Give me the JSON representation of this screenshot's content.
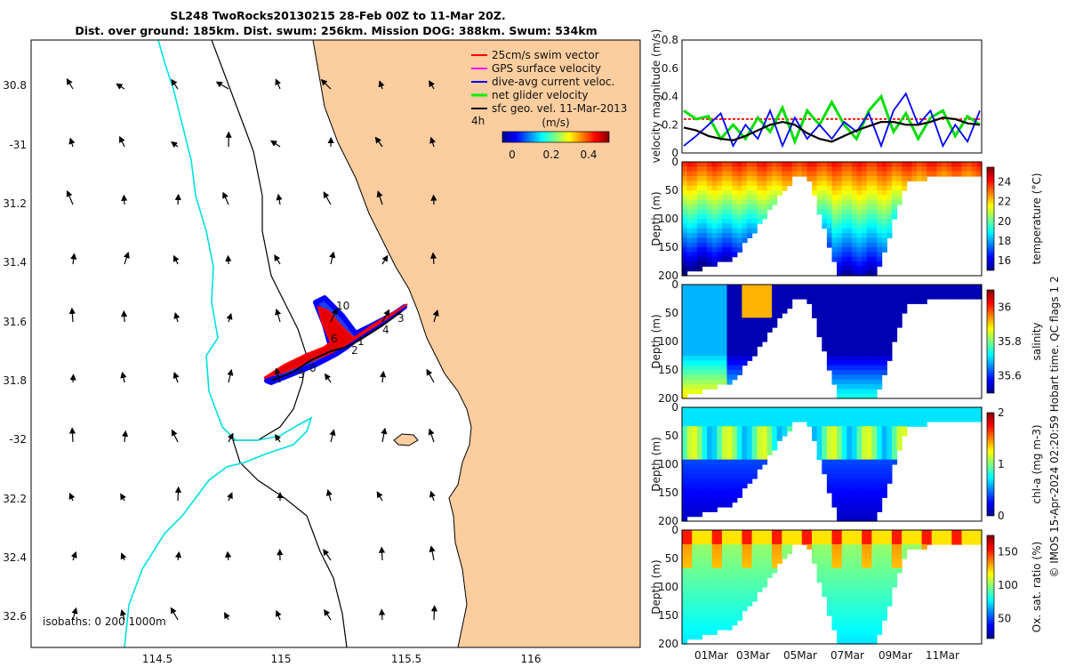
{
  "title_line1": "SL248 TwoRocks20130215 28-Feb 00Z to 11-Mar 20Z.",
  "title_line2": "Dist. over ground: 185km. Dist. swum: 256km. Mission DOG: 388km. Swum: 534km",
  "credit": "© IMOS 15-Apr-2024 02:20:59 Hobart time. QC flags 1  2",
  "map": {
    "lon_ticks": [
      "114.5",
      "115",
      "115.5",
      "116"
    ],
    "lat_ticks": [
      "30.8",
      "-31",
      "31.2",
      "31.4",
      "31.6",
      "31.8",
      "-32",
      "32.2",
      "32.4",
      "32.6"
    ],
    "isobaths_label": "isobaths: 0   200  1000m",
    "legend": {
      "items": [
        {
          "label": "25cm/s swim vector",
          "color": "#ff0000"
        },
        {
          "label": "GPS surface velocity",
          "color": "#ff00ff"
        },
        {
          "label": "dive-avg current veloc.",
          "color": "#0000ff"
        },
        {
          "label": "net glider velocity",
          "color": "#00ee00"
        },
        {
          "label": "sfc geo. vel. 11-Mar-2013",
          "color": "#000000"
        }
      ],
      "time_marker": "4h",
      "colorbar_unit": "(m/s)",
      "colorbar_ticks": [
        "0",
        "0.2",
        "0.4"
      ]
    },
    "track_labels": [
      "10",
      "3",
      "4",
      "2",
      "0",
      "1",
      "5",
      "6"
    ],
    "colors": {
      "land": "#fbcd9f",
      "coastline": "#000000",
      "isobath_200": "#000000",
      "isobath_1000": "#00e0e0"
    }
  },
  "chart_data": [
    {
      "type": "line",
      "ylabel": "velocity magnitude (m/s)",
      "ylim": [
        0,
        0.8
      ],
      "yticks": [
        "0",
        "0.2",
        "0.4",
        "0.6",
        "0.8"
      ],
      "x_start": "28-Feb",
      "x_end": "11-Mar",
      "series": [
        {
          "color": "#ff0000",
          "values_desc": "constant swim speed",
          "values": [
            0.24,
            0.24,
            0.24,
            0.24,
            0.24,
            0.24,
            0.24,
            0.24,
            0.24,
            0.24,
            0.24,
            0.24
          ]
        },
        {
          "color": "#00dd00",
          "values": [
            0.3,
            0.24,
            0.26,
            0.1,
            0.2,
            0.1,
            0.25,
            0.15,
            0.32,
            0.08,
            0.3,
            0.2,
            0.36,
            0.2,
            0.1,
            0.3,
            0.4,
            0.15,
            0.28,
            0.1,
            0.25,
            0.3,
            0.12,
            0.26,
            0.2
          ]
        },
        {
          "color": "#0000ff",
          "values": [
            0.05,
            0.12,
            0.2,
            0.28,
            0.05,
            0.2,
            0.1,
            0.3,
            0.05,
            0.25,
            0.1,
            0.2,
            0.1,
            0.22,
            0.15,
            0.28,
            0.05,
            0.3,
            0.42,
            0.2,
            0.3,
            0.05,
            0.2,
            0.08,
            0.3
          ]
        },
        {
          "color": "#000000",
          "values": [
            0.18,
            0.16,
            0.12,
            0.1,
            0.09,
            0.12,
            0.16,
            0.2,
            0.22,
            0.2,
            0.14,
            0.1,
            0.08,
            0.12,
            0.16,
            0.19,
            0.22,
            0.22,
            0.2,
            0.2,
            0.22,
            0.25,
            0.24,
            0.21,
            0.2
          ]
        }
      ]
    },
    {
      "type": "heatmap",
      "ylabel": "Depth (m)",
      "clabel": "temperature (°C)",
      "ylim": [
        200,
        0
      ],
      "yticks": [
        "0",
        "50",
        "100",
        "150",
        "200"
      ],
      "cticks": [
        "16",
        "18",
        "20",
        "22",
        "24"
      ],
      "crange": [
        15,
        25.5
      ]
    },
    {
      "type": "heatmap",
      "ylabel": "Depth (m)",
      "clabel": "salinity",
      "ylim": [
        200,
        0
      ],
      "yticks": [
        "0",
        "50",
        "100",
        "150",
        "200"
      ],
      "cticks": [
        "35.6",
        "35.8",
        "36"
      ],
      "crange": [
        35.5,
        36.1
      ]
    },
    {
      "type": "heatmap",
      "ylabel": "Depth (m)",
      "clabel": "chl-a (mg m-3)",
      "ylim": [
        200,
        0
      ],
      "yticks": [
        "0",
        "50",
        "100",
        "150",
        "200"
      ],
      "cticks": [
        "0",
        "1",
        "2"
      ],
      "crange": [
        0,
        2
      ]
    },
    {
      "type": "heatmap",
      "ylabel": "Depth (m)",
      "clabel": "Ox. sat. ratio (%)",
      "ylim": [
        200,
        0
      ],
      "yticks": [
        "0",
        "50",
        "100",
        "150",
        "200"
      ],
      "cticks": [
        "50",
        "100",
        "150"
      ],
      "crange": [
        20,
        175
      ]
    }
  ],
  "time_axis_ticks": [
    "01Mar",
    "03Mar",
    "05Mar",
    "07Mar",
    "09Mar",
    "11Mar"
  ]
}
